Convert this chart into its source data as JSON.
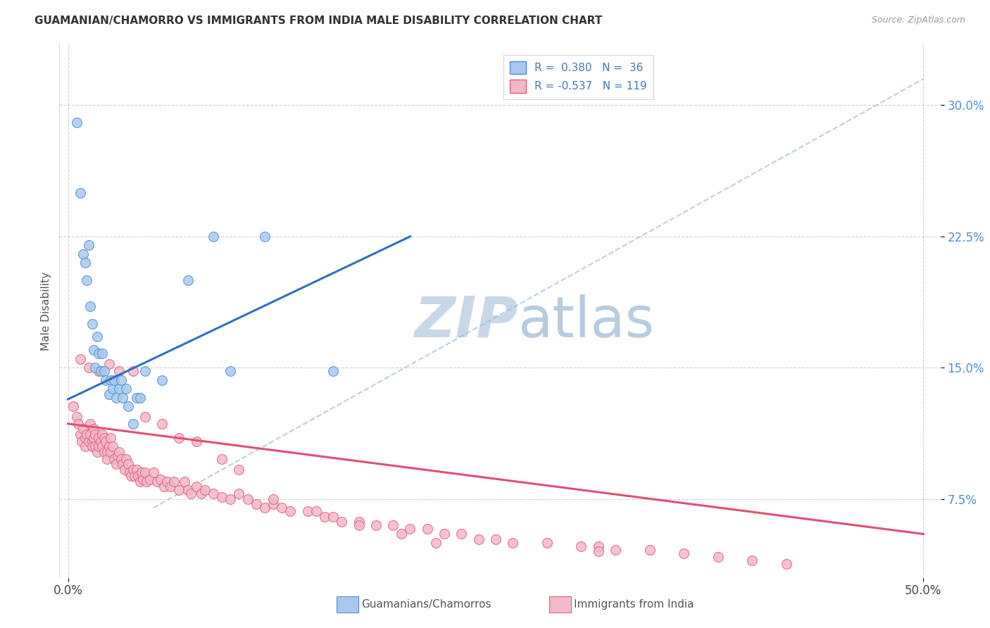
{
  "title": "GUAMANIAN/CHAMORRO VS IMMIGRANTS FROM INDIA MALE DISABILITY CORRELATION CHART",
  "source": "Source: ZipAtlas.com",
  "ylabel": "Male Disability",
  "ytick_labels": [
    "7.5%",
    "15.0%",
    "22.5%",
    "30.0%"
  ],
  "ytick_values": [
    0.075,
    0.15,
    0.225,
    0.3
  ],
  "xtick_labels": [
    "0.0%",
    "50.0%"
  ],
  "xtick_values": [
    0.0,
    0.5
  ],
  "xlim": [
    -0.005,
    0.51
  ],
  "ylim": [
    0.03,
    0.335
  ],
  "color_blue_fill": "#A8C8F0",
  "color_pink_fill": "#F5B8C8",
  "color_blue_edge": "#5090D0",
  "color_pink_edge": "#E06080",
  "color_blue_line": "#3070C0",
  "color_pink_line": "#E05070",
  "color_dashed": "#A0B8D8",
  "watermark_color": "#C8D8E8",
  "grid_color": "#CCCCCC",
  "blue_r": "0.380",
  "blue_n": "36",
  "pink_r": "-0.537",
  "pink_n": "119",
  "blue_line_x0": 0.0,
  "blue_line_y0": 0.132,
  "blue_line_x1": 0.2,
  "blue_line_y1": 0.225,
  "pink_line_x0": 0.0,
  "pink_line_y0": 0.118,
  "pink_line_x1": 0.5,
  "pink_line_y1": 0.055,
  "dash_line_x0": 0.05,
  "dash_line_y0": 0.07,
  "dash_line_x1": 0.5,
  "dash_line_y1": 0.315,
  "guam_x": [
    0.005,
    0.007,
    0.009,
    0.01,
    0.011,
    0.012,
    0.013,
    0.014,
    0.015,
    0.016,
    0.017,
    0.018,
    0.019,
    0.02,
    0.021,
    0.022,
    0.024,
    0.025,
    0.026,
    0.027,
    0.028,
    0.03,
    0.031,
    0.032,
    0.034,
    0.035,
    0.038,
    0.04,
    0.042,
    0.045,
    0.055,
    0.07,
    0.085,
    0.095,
    0.115,
    0.155
  ],
  "guam_y": [
    0.29,
    0.25,
    0.215,
    0.21,
    0.2,
    0.22,
    0.185,
    0.175,
    0.16,
    0.15,
    0.168,
    0.158,
    0.148,
    0.158,
    0.148,
    0.143,
    0.135,
    0.143,
    0.138,
    0.143,
    0.133,
    0.138,
    0.143,
    0.133,
    0.138,
    0.128,
    0.118,
    0.133,
    0.133,
    0.148,
    0.143,
    0.2,
    0.225,
    0.148,
    0.225,
    0.148
  ],
  "india_x": [
    0.003,
    0.005,
    0.006,
    0.007,
    0.008,
    0.009,
    0.01,
    0.01,
    0.011,
    0.012,
    0.013,
    0.013,
    0.014,
    0.014,
    0.015,
    0.015,
    0.016,
    0.016,
    0.017,
    0.018,
    0.018,
    0.019,
    0.02,
    0.02,
    0.021,
    0.021,
    0.022,
    0.023,
    0.023,
    0.024,
    0.025,
    0.025,
    0.026,
    0.027,
    0.028,
    0.029,
    0.03,
    0.031,
    0.032,
    0.033,
    0.034,
    0.035,
    0.036,
    0.037,
    0.038,
    0.039,
    0.04,
    0.041,
    0.042,
    0.043,
    0.044,
    0.045,
    0.046,
    0.048,
    0.05,
    0.052,
    0.054,
    0.056,
    0.058,
    0.06,
    0.062,
    0.065,
    0.068,
    0.07,
    0.072,
    0.075,
    0.078,
    0.08,
    0.085,
    0.09,
    0.095,
    0.1,
    0.105,
    0.11,
    0.115,
    0.12,
    0.125,
    0.13,
    0.14,
    0.15,
    0.155,
    0.16,
    0.17,
    0.18,
    0.19,
    0.2,
    0.21,
    0.22,
    0.23,
    0.24,
    0.25,
    0.26,
    0.28,
    0.3,
    0.31,
    0.32,
    0.34,
    0.36,
    0.38,
    0.4,
    0.007,
    0.012,
    0.018,
    0.024,
    0.03,
    0.038,
    0.045,
    0.055,
    0.065,
    0.075,
    0.09,
    0.1,
    0.12,
    0.145,
    0.17,
    0.195,
    0.215,
    0.31,
    0.42
  ],
  "india_y": [
    0.128,
    0.122,
    0.118,
    0.112,
    0.108,
    0.115,
    0.11,
    0.105,
    0.112,
    0.108,
    0.118,
    0.112,
    0.108,
    0.105,
    0.115,
    0.11,
    0.112,
    0.105,
    0.102,
    0.11,
    0.105,
    0.108,
    0.112,
    0.105,
    0.11,
    0.102,
    0.108,
    0.102,
    0.098,
    0.105,
    0.11,
    0.102,
    0.105,
    0.098,
    0.095,
    0.1,
    0.102,
    0.098,
    0.095,
    0.092,
    0.098,
    0.095,
    0.09,
    0.088,
    0.092,
    0.088,
    0.092,
    0.088,
    0.085,
    0.09,
    0.086,
    0.09,
    0.085,
    0.086,
    0.09,
    0.085,
    0.086,
    0.082,
    0.085,
    0.082,
    0.085,
    0.08,
    0.085,
    0.08,
    0.078,
    0.082,
    0.078,
    0.08,
    0.078,
    0.076,
    0.075,
    0.078,
    0.075,
    0.072,
    0.07,
    0.072,
    0.07,
    0.068,
    0.068,
    0.065,
    0.065,
    0.062,
    0.062,
    0.06,
    0.06,
    0.058,
    0.058,
    0.055,
    0.055,
    0.052,
    0.052,
    0.05,
    0.05,
    0.048,
    0.048,
    0.046,
    0.046,
    0.044,
    0.042,
    0.04,
    0.155,
    0.15,
    0.148,
    0.152,
    0.148,
    0.148,
    0.122,
    0.118,
    0.11,
    0.108,
    0.098,
    0.092,
    0.075,
    0.068,
    0.06,
    0.055,
    0.05,
    0.045,
    0.038
  ]
}
